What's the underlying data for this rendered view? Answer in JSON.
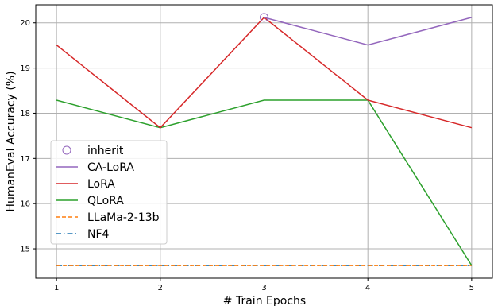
{
  "chart_data": {
    "type": "line",
    "x": [
      1,
      2,
      3,
      4,
      5
    ],
    "xlabel": "# Train Epochs",
    "ylabel": "HumanEval Accuracy (%)",
    "xlim": [
      0.8,
      5.2
    ],
    "ylim": [
      14.35,
      20.4
    ],
    "xticks": [
      1,
      2,
      3,
      4,
      5
    ],
    "yticks": [
      15,
      16,
      17,
      18,
      19,
      20
    ],
    "grid": true,
    "legend_position": "center-left",
    "series": [
      {
        "name": "CA-LoRA",
        "color": "#9467bd",
        "style": "solid",
        "values": [
          null,
          null,
          20.12,
          19.51,
          20.12
        ]
      },
      {
        "name": "LoRA",
        "color": "#d62728",
        "style": "solid",
        "values": [
          19.51,
          17.68,
          20.12,
          18.29,
          17.68
        ]
      },
      {
        "name": "QLoRA",
        "color": "#2ca02c",
        "style": "solid",
        "values": [
          18.29,
          17.68,
          18.29,
          18.29,
          14.63
        ]
      },
      {
        "name": "LLaMa-2-13b",
        "color": "#ff7f0e",
        "style": "dashed",
        "values": [
          14.63,
          14.63,
          14.63,
          14.63,
          14.63
        ]
      },
      {
        "name": "NF4",
        "color": "#1f77b4",
        "style": "dashdot",
        "values": [
          14.63,
          14.63,
          14.63,
          14.63,
          14.63
        ]
      }
    ],
    "markers": [
      {
        "name": "inherit",
        "color": "#9467bd",
        "shape": "open-circle",
        "x": 3,
        "y": 20.12
      }
    ],
    "legend": [
      "inherit",
      "CA-LoRA",
      "LoRA",
      "QLoRA",
      "LLaMa-2-13b",
      "NF4"
    ]
  }
}
